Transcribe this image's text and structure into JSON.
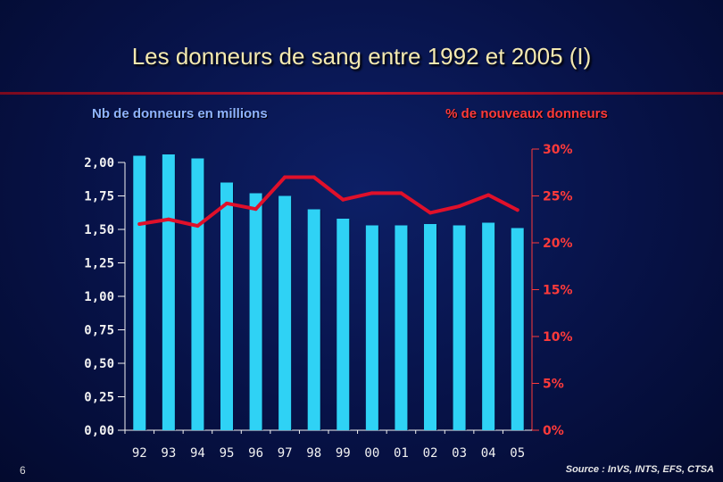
{
  "title": "Les donneurs de sang entre 1992 et 2005 (I)",
  "page_number": "6",
  "source": "Source : InVS, INTS, EFS, CTSA",
  "colors": {
    "bar": "#2fd2f5",
    "line": "#e0102a",
    "axis_left": "#f2f2f2",
    "axis_right": "#ff3a3a"
  },
  "chart_data": {
    "type": "bar",
    "categories": [
      "92",
      "93",
      "94",
      "95",
      "96",
      "97",
      "98",
      "99",
      "00",
      "01",
      "02",
      "03",
      "04",
      "05"
    ],
    "ylabel": "Nb de donneurs en millions",
    "y2label": "% de nouveaux donneurs",
    "ylim": [
      0,
      2.0
    ],
    "y2lim": [
      0,
      30
    ],
    "yticks": [
      "0,00",
      "0,25",
      "0,50",
      "0,75",
      "1,00",
      "1,25",
      "1,50",
      "1,75",
      "2,00"
    ],
    "y2ticks": [
      "0%",
      "5%",
      "10%",
      "15%",
      "20%",
      "25%",
      "30%"
    ],
    "series": [
      {
        "type": "bar",
        "axis": "left",
        "values": [
          2.05,
          2.06,
          2.03,
          1.85,
          1.77,
          1.75,
          1.65,
          1.58,
          1.53,
          1.53,
          1.54,
          1.53,
          1.55,
          1.51
        ]
      },
      {
        "type": "line",
        "axis": "right",
        "values": [
          22.0,
          22.5,
          21.8,
          24.2,
          23.6,
          27.0,
          27.0,
          24.6,
          25.3,
          25.3,
          23.2,
          23.9,
          25.1,
          23.5
        ]
      }
    ]
  }
}
